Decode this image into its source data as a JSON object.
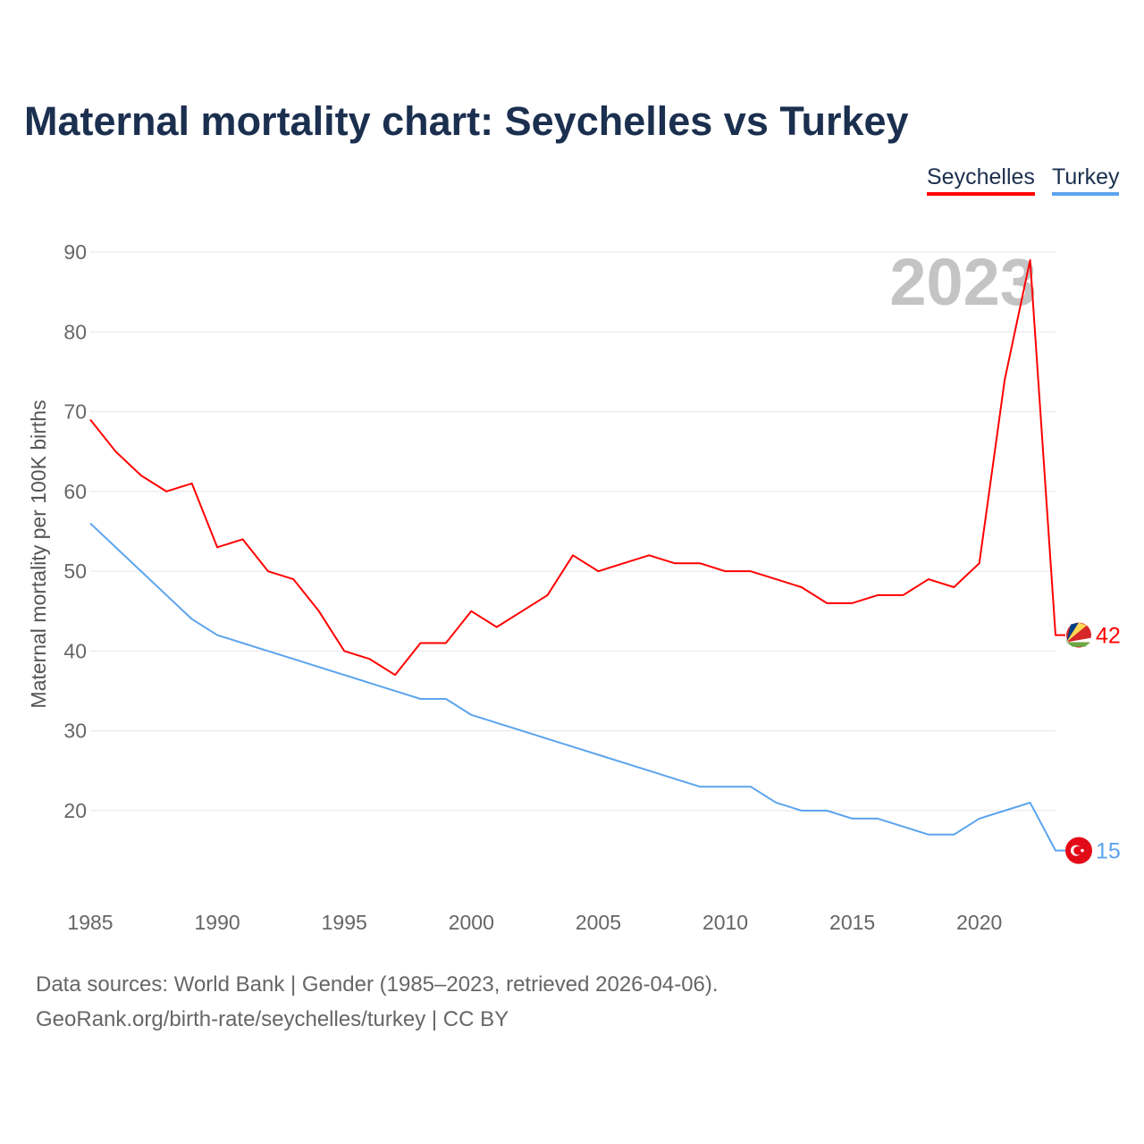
{
  "chart_data": {
    "type": "line",
    "title": "Maternal mortality chart: Seychelles vs Turkey",
    "ylabel": "Maternal mortality per 100K births",
    "xlabel": "",
    "year_label": "2023",
    "x": [
      1985,
      1986,
      1987,
      1988,
      1989,
      1990,
      1991,
      1992,
      1993,
      1994,
      1995,
      1996,
      1997,
      1998,
      1999,
      2000,
      2001,
      2002,
      2003,
      2004,
      2005,
      2006,
      2007,
      2008,
      2009,
      2010,
      2011,
      2012,
      2013,
      2014,
      2015,
      2016,
      2017,
      2018,
      2019,
      2020,
      2021,
      2022,
      2023
    ],
    "xticks": [
      "1985",
      "1990",
      "1995",
      "2000",
      "2005",
      "2010",
      "2015",
      "2020"
    ],
    "yticks": [
      "20",
      "30",
      "40",
      "50",
      "60",
      "70",
      "80",
      "90"
    ],
    "ylim": [
      0,
      90
    ],
    "xlim": [
      1985,
      2023
    ],
    "legend_position": "top-right",
    "series": [
      {
        "name": "Seychelles",
        "color": "#ff0000",
        "end_label": "42",
        "values": [
          69,
          65,
          62,
          60,
          61,
          53,
          54,
          50,
          49,
          45,
          40,
          39,
          37,
          41,
          41,
          45,
          43,
          45,
          47,
          52,
          50,
          51,
          52,
          51,
          51,
          50,
          50,
          49,
          48,
          46,
          46,
          47,
          47,
          49,
          48,
          51,
          74,
          89,
          42
        ]
      },
      {
        "name": "Turkey",
        "color": "#5ba4ee",
        "end_label": "15",
        "values": [
          56,
          53,
          50,
          47,
          44,
          42,
          41,
          40,
          39,
          38,
          37,
          36,
          35,
          34,
          34,
          32,
          31,
          30,
          29,
          28,
          27,
          26,
          25,
          24,
          23,
          23,
          23,
          21,
          20,
          20,
          19,
          19,
          18,
          17,
          17,
          19,
          20,
          21,
          15
        ]
      }
    ]
  },
  "footer": {
    "line1": "Data sources: World Bank | Gender (1985–2023, retrieved 2026-04-06).",
    "line2": "GeoRank.org/birth-rate/seychelles/turkey | CC BY"
  }
}
